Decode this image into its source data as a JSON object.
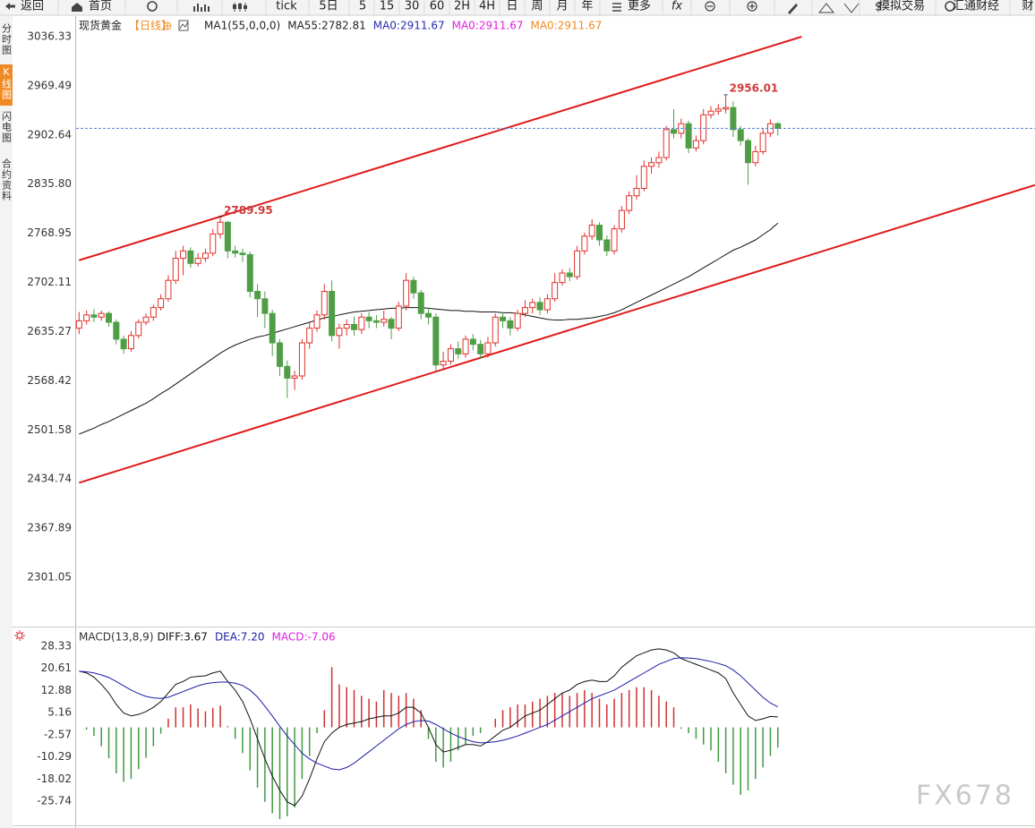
{
  "toolbar": {
    "items": [
      "返回",
      "首页",
      "tick",
      "5日",
      "5",
      "15",
      "30",
      "60",
      "2H",
      "4H",
      "日",
      "周",
      "月",
      "年",
      "更多",
      "fx",
      "模拟交易",
      "汇通财经",
      "财"
    ]
  },
  "sidebar": {
    "tabs": [
      "分时图",
      "K线图",
      "闪电图",
      "合约资料"
    ],
    "active": 1
  },
  "watermark": "FX678",
  "chart_data": [
    {
      "type": "candlestick",
      "header": [
        {
          "text": "现货黄金",
          "color": "#222222"
        },
        {
          "text": "【日线】",
          "color": "#f08a24"
        },
        {
          "text": "MA1(55,0,0,0)",
          "color": "#222222"
        },
        {
          "text": "MA55:2782.81",
          "color": "#222222"
        },
        {
          "text": "MA0:2911.67",
          "color": "#2a2ab0"
        },
        {
          "text": "MA0:2911.67",
          "color": "#e020e0"
        },
        {
          "text": "MA0:2911.67",
          "color": "#f08a24"
        }
      ],
      "open": [
        2640,
        2650,
        2658,
        2655,
        2660,
        2648,
        2625,
        2612,
        2630,
        2648,
        2655,
        2668,
        2680,
        2705,
        2735,
        2745,
        2728,
        2735,
        2742,
        2768,
        2784,
        2745,
        2742,
        2740,
        2690,
        2680,
        2660,
        2620,
        2588,
        2572,
        2575,
        2620,
        2640,
        2658,
        2690,
        2630,
        2640,
        2645,
        2638,
        2655,
        2650,
        2648,
        2652,
        2640,
        2670,
        2705,
        2688,
        2660,
        2655,
        2590,
        2595,
        2612,
        2605,
        2625,
        2618,
        2605,
        2620,
        2655,
        2650,
        2640,
        2660,
        2668,
        2675,
        2665,
        2680,
        2702,
        2715,
        2710,
        2745,
        2765,
        2780,
        2760,
        2745,
        2775,
        2800,
        2820,
        2830,
        2860,
        2865,
        2872,
        2910,
        2905,
        2918,
        2885,
        2895,
        2930,
        2935,
        2938,
        2940,
        2910,
        2895,
        2865,
        2880,
        2905,
        2918
      ],
      "high": [
        2662,
        2664,
        2666,
        2664,
        2663,
        2652,
        2630,
        2636,
        2652,
        2660,
        2672,
        2686,
        2712,
        2745,
        2752,
        2750,
        2742,
        2748,
        2775,
        2789.95,
        2786,
        2752,
        2748,
        2744,
        2700,
        2690,
        2665,
        2625,
        2596,
        2582,
        2625,
        2648,
        2664,
        2700,
        2705,
        2646,
        2652,
        2656,
        2660,
        2662,
        2658,
        2664,
        2655,
        2676,
        2715,
        2710,
        2692,
        2668,
        2660,
        2608,
        2618,
        2622,
        2630,
        2632,
        2624,
        2628,
        2660,
        2662,
        2655,
        2665,
        2678,
        2680,
        2682,
        2686,
        2715,
        2720,
        2722,
        2752,
        2770,
        2788,
        2784,
        2766,
        2780,
        2806,
        2826,
        2848,
        2868,
        2872,
        2880,
        2915,
        2938,
        2925,
        2922,
        2902,
        2938,
        2942,
        2945,
        2956.01,
        2948,
        2915,
        2898,
        2888,
        2912,
        2924,
        2920
      ],
      "low": [
        2632,
        2645,
        2648,
        2650,
        2642,
        2618,
        2605,
        2608,
        2626,
        2644,
        2650,
        2664,
        2676,
        2700,
        2712,
        2722,
        2724,
        2730,
        2738,
        2762,
        2735,
        2736,
        2730,
        2682,
        2655,
        2640,
        2602,
        2575,
        2545,
        2556,
        2570,
        2612,
        2635,
        2652,
        2622,
        2612,
        2630,
        2630,
        2632,
        2640,
        2640,
        2642,
        2625,
        2636,
        2664,
        2680,
        2652,
        2645,
        2582,
        2585,
        2590,
        2598,
        2600,
        2610,
        2598,
        2600,
        2615,
        2640,
        2630,
        2636,
        2655,
        2660,
        2658,
        2660,
        2676,
        2698,
        2704,
        2706,
        2740,
        2760,
        2752,
        2738,
        2740,
        2770,
        2795,
        2815,
        2826,
        2850,
        2858,
        2868,
        2898,
        2898,
        2878,
        2880,
        2890,
        2925,
        2930,
        2932,
        2900,
        2888,
        2835,
        2860,
        2876,
        2900,
        2902
      ],
      "close": [
        2650,
        2658,
        2655,
        2660,
        2648,
        2625,
        2612,
        2630,
        2648,
        2655,
        2668,
        2680,
        2705,
        2735,
        2745,
        2728,
        2735,
        2742,
        2768,
        2784,
        2745,
        2742,
        2740,
        2690,
        2680,
        2660,
        2620,
        2588,
        2572,
        2575,
        2620,
        2640,
        2658,
        2690,
        2630,
        2640,
        2645,
        2638,
        2655,
        2650,
        2648,
        2652,
        2640,
        2670,
        2705,
        2688,
        2660,
        2655,
        2590,
        2595,
        2612,
        2605,
        2625,
        2618,
        2605,
        2620,
        2655,
        2650,
        2640,
        2660,
        2668,
        2675,
        2665,
        2680,
        2702,
        2715,
        2710,
        2745,
        2765,
        2780,
        2760,
        2745,
        2775,
        2800,
        2820,
        2830,
        2860,
        2865,
        2872,
        2910,
        2905,
        2918,
        2885,
        2895,
        2930,
        2935,
        2938,
        2940,
        2910,
        2895,
        2865,
        2880,
        2905,
        2918,
        2911.67
      ],
      "up_color": "#e0302a",
      "down_color": "#4f9e46",
      "series": [
        {
          "name": "MA55:2782.81",
          "color": "#111111",
          "values": [
            2496,
            2500,
            2504,
            2509,
            2513,
            2518,
            2523,
            2528,
            2533,
            2538,
            2544,
            2551,
            2557,
            2564,
            2571,
            2578,
            2585,
            2592,
            2599,
            2606,
            2612,
            2617,
            2621,
            2625,
            2628,
            2630,
            2633,
            2636,
            2639,
            2642,
            2645,
            2648,
            2651,
            2654,
            2656,
            2658,
            2660,
            2662,
            2663,
            2664,
            2665,
            2666,
            2667,
            2667,
            2668,
            2668,
            2668,
            2667,
            2666,
            2665,
            2664,
            2664,
            2663,
            2663,
            2662,
            2662,
            2662,
            2661,
            2661,
            2660,
            2658,
            2656,
            2654,
            2652,
            2651,
            2651,
            2652,
            2652,
            2653,
            2654,
            2656,
            2658,
            2661,
            2665,
            2670,
            2675,
            2680,
            2685,
            2690,
            2695,
            2700,
            2705,
            2710,
            2716,
            2722,
            2728,
            2734,
            2740,
            2746,
            2750,
            2755,
            2760,
            2767,
            2774,
            2782.81
          ]
        }
      ],
      "trendline_color": "#e01818",
      "trendlines": [
        {
          "x": [
            0,
            97.2
          ],
          "y": [
            2732.3,
            3036.3
          ]
        },
        {
          "x": [
            0,
            128.6
          ],
          "y": [
            2429.8,
            2834.6
          ]
        }
      ],
      "last_price_color": "#4a7fd0",
      "peak_label_color": "#d03a3a",
      "xlim": [
        -0.4,
        128.6
      ],
      "ylim": [
        2234.2,
        3064.3
      ],
      "yticks": [
        3036.33,
        2969.49,
        2902.64,
        {
          "value": 2835.8,
          "label": "2835.80"
        },
        2768.95,
        2702.11,
        2635.27,
        2568.42,
        2501.58,
        2434.74,
        2367.89,
        2301.05
      ],
      "grid": false
    },
    {
      "type": "macd",
      "title": "MACD(13,8,9)",
      "series": [
        {
          "name": "DIFF:3.67",
          "color": "#111111",
          "values": [
            19.6,
            19,
            17.5,
            15,
            12,
            8,
            5,
            4,
            4.5,
            5.5,
            7,
            9,
            12,
            15,
            16,
            17.5,
            17.8,
            18,
            19,
            19.6,
            16,
            13,
            9,
            3,
            -4,
            -11,
            -17,
            -22,
            -26,
            -27.3,
            -24,
            -18,
            -11,
            -5,
            -2,
            0,
            1,
            1.5,
            2,
            3,
            3.5,
            4,
            4,
            5,
            7,
            7,
            5,
            0,
            -6,
            -8.6,
            -8,
            -7,
            -6,
            -6,
            -6.5,
            -5,
            -3,
            -1,
            0,
            2,
            4,
            5,
            6,
            8,
            10,
            12,
            13,
            15,
            16,
            16.5,
            16,
            16,
            18,
            21,
            23,
            25,
            26,
            27,
            27.4,
            27,
            26,
            24,
            23,
            22,
            21,
            20,
            19,
            17,
            12,
            8,
            4,
            2.4,
            3,
            3.8,
            3.67
          ]
        },
        {
          "name": "DEA:7.20",
          "color": "#1c1ca8",
          "values": [
            19.6,
            19.4,
            19,
            18.3,
            17.4,
            16,
            14.5,
            13,
            11.8,
            10.8,
            10.3,
            10.1,
            10.5,
            11.5,
            12.5,
            13.5,
            14.5,
            15.2,
            15.6,
            15.8,
            15.8,
            15.4,
            14.6,
            13,
            10.6,
            7.4,
            4,
            0.4,
            -3,
            -6,
            -9,
            -11,
            -12.5,
            -13.5,
            -14.5,
            -14.8,
            -14,
            -12.5,
            -10.5,
            -8.5,
            -6.5,
            -4.5,
            -2.5,
            -0.5,
            1,
            2,
            2.4,
            2.2,
            1,
            -0.5,
            -2,
            -3.2,
            -4.2,
            -5,
            -5.4,
            -5.3,
            -5,
            -4.5,
            -3.8,
            -3,
            -2,
            -1,
            0,
            1,
            2.5,
            4,
            5.5,
            7,
            8.5,
            10,
            11,
            12,
            13,
            14.5,
            16,
            17.5,
            19,
            20.5,
            22,
            23,
            24,
            24.3,
            24.2,
            24,
            23.5,
            23,
            22.3,
            21.5,
            20,
            18,
            15.5,
            13,
            10.5,
            8.5,
            7.2
          ]
        }
      ],
      "histogram": {
        "name": "MACD:-7.06",
        "color": "#e020e0",
        "up_color": "#d03030",
        "down_color": "#3f9a3f",
        "values": [
          0,
          -0.8,
          -3,
          -6.6,
          -10.8,
          -16,
          -19,
          -18,
          -14.6,
          -10.6,
          -6.6,
          -2.2,
          3,
          7,
          7,
          8,
          6.6,
          5.6,
          6.8,
          7.6,
          0.4,
          -4,
          -9,
          -15,
          -21,
          -26,
          -30,
          -32,
          -31,
          -28,
          -18,
          -10,
          -2,
          6,
          21,
          15,
          14,
          13,
          11,
          10,
          9,
          13,
          12,
          11,
          12,
          10,
          6,
          -4,
          -12,
          -14,
          -12,
          -8,
          -6,
          -3,
          -2,
          0,
          3,
          6,
          7,
          8,
          8,
          9,
          10,
          11,
          12,
          12,
          11,
          12,
          13,
          12,
          10,
          8,
          10,
          12,
          13,
          14,
          14,
          13,
          11,
          9,
          7,
          -0.5,
          -2,
          -4,
          -6,
          -8,
          -12,
          -16,
          -20,
          -23.5,
          -22,
          -18,
          -14,
          -10,
          -7.06
        ]
      },
      "xlim": [
        -0.4,
        128.6
      ],
      "ylim": [
        -33.55,
        33.6
      ],
      "yticks": [
        28.33,
        20.61,
        12.88,
        5.16,
        -2.57,
        -10.29,
        -18.02,
        -25.74
      ]
    }
  ]
}
